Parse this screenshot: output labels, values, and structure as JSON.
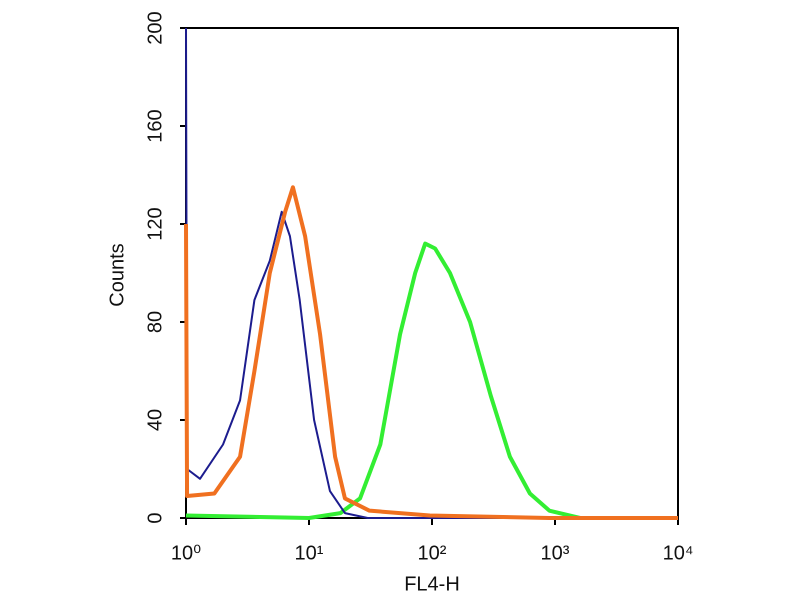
{
  "chart_data": {
    "type": "line",
    "x_label": "FL4-H",
    "y_label": "Counts",
    "xscale": "log",
    "xlim": [
      1,
      10000
    ],
    "xticks": [
      {
        "value": 1,
        "label": "10⁰"
      },
      {
        "value": 10,
        "label": "10¹"
      },
      {
        "value": 100,
        "label": "10²"
      },
      {
        "value": 1000,
        "label": "10³"
      },
      {
        "value": 10000,
        "label": "10⁴"
      }
    ],
    "ylim": [
      0,
      200
    ],
    "yticks": [
      0,
      40,
      80,
      120,
      160,
      200
    ],
    "series": [
      {
        "color": "#1c1c8e",
        "x": [
          1,
          1.02,
          1.3,
          2,
          2.75,
          3.6,
          4.8,
          6,
          7,
          8.4,
          11,
          14.8,
          19.6,
          30,
          100,
          1000,
          10000
        ],
        "values": [
          200,
          20,
          16,
          30,
          48,
          89,
          105,
          125,
          115,
          89,
          40,
          11,
          2,
          0,
          0,
          0,
          0
        ]
      },
      {
        "color": "#f07020",
        "x": [
          1,
          1.02,
          1.7,
          2.75,
          3.6,
          4.8,
          6.4,
          7.4,
          9.3,
          12.3,
          16.3,
          19.6,
          31,
          96,
          900,
          10000
        ],
        "values": [
          120,
          9,
          10,
          25,
          60,
          100,
          125,
          135,
          115,
          75,
          25,
          8,
          3,
          1,
          0,
          0
        ]
      },
      {
        "color": "#33ee33",
        "x": [
          1,
          10,
          18,
          26,
          38,
          55,
          73,
          88,
          106,
          140,
          204,
          300,
          430,
          625,
          900,
          1600,
          10000
        ],
        "values": [
          1,
          0,
          2,
          8,
          30,
          75,
          100,
          112,
          110,
          100,
          80,
          50,
          25,
          10,
          3,
          0,
          0
        ]
      }
    ]
  }
}
